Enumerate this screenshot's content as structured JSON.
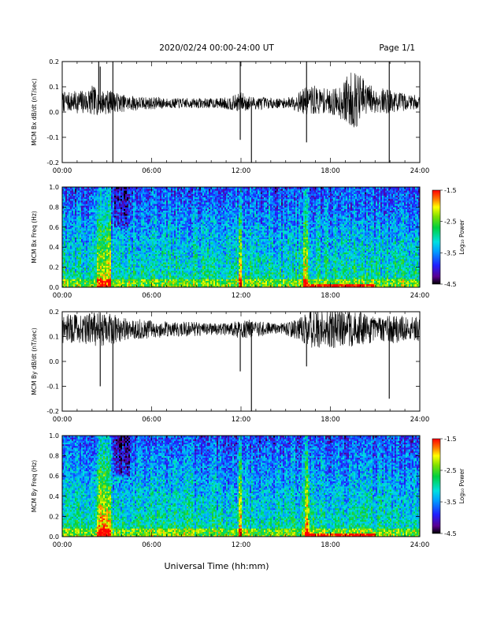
{
  "header": {
    "title": "2020/02/24  00:00-24:00 UT",
    "page": "Page 1/1"
  },
  "footer": {
    "xlabel": "Universal Time (hh:mm)"
  },
  "chart_data": [
    {
      "type": "line",
      "ylabel": "MCM Bx dB/dt (nT/sec)",
      "xlim": [
        0,
        24
      ],
      "ylim": [
        -0.2,
        0.2
      ],
      "xticks": [
        "00:00",
        "06:00",
        "12:00",
        "18:00",
        "24:00"
      ],
      "yticks": [
        "-0.2",
        "-0.1",
        "0.0",
        "0.1",
        "0.2"
      ],
      "series": [
        {
          "x": [
            0,
            0.5,
            1,
            1.5,
            2,
            2.5,
            3,
            3.5,
            4,
            4.5,
            5,
            5.5,
            6,
            6.5,
            7,
            7.5,
            8,
            8.5,
            9,
            9.5,
            10,
            10.5,
            11,
            11.5,
            12,
            12.5,
            13,
            13.5,
            14,
            14.5,
            15,
            15.5,
            16,
            16.5,
            17,
            17.5,
            18,
            18.5,
            19,
            19.5,
            20,
            20.5,
            21,
            21.5,
            22,
            22.5,
            23,
            23.5,
            24
          ],
          "y": [
            0.04,
            0.04,
            0.04,
            0.04,
            0.045,
            0.04,
            0.04,
            0.04,
            0.035,
            0.035,
            0.035,
            0.035,
            0.035,
            0.035,
            0.035,
            0.035,
            0.035,
            0.035,
            0.035,
            0.035,
            0.035,
            0.035,
            0.035,
            0.035,
            0.04,
            0.035,
            0.035,
            0.035,
            0.035,
            0.035,
            0.035,
            0.04,
            0.04,
            0.045,
            0.045,
            0.045,
            0.04,
            0.04,
            0.045,
            0.05,
            0.05,
            0.05,
            0.045,
            0.045,
            0.04,
            0.04,
            0.04,
            0.04,
            0.04
          ],
          "envelope": [
            0.04,
            0.04,
            0.045,
            0.05,
            0.06,
            0.05,
            0.05,
            0.04,
            0.035,
            0.03,
            0.03,
            0.025,
            0.025,
            0.025,
            0.02,
            0.02,
            0.02,
            0.02,
            0.02,
            0.02,
            0.02,
            0.02,
            0.025,
            0.03,
            0.04,
            0.03,
            0.025,
            0.025,
            0.02,
            0.02,
            0.02,
            0.03,
            0.045,
            0.06,
            0.06,
            0.05,
            0.05,
            0.06,
            0.09,
            0.12,
            0.1,
            0.07,
            0.05,
            0.05,
            0.05,
            0.04,
            0.035,
            0.03,
            0.03
          ]
        }
      ],
      "spikes": [
        {
          "x": 2.45,
          "y": 0.2
        },
        {
          "x": 2.55,
          "y": 0.18
        },
        {
          "x": 3.4,
          "y": 0.2
        },
        {
          "x": 3.4,
          "y": -0.2
        },
        {
          "x": 11.95,
          "y": 0.2
        },
        {
          "x": 11.95,
          "y": -0.11
        },
        {
          "x": 12.7,
          "y": -0.2
        },
        {
          "x": 16.4,
          "y": 0.2
        },
        {
          "x": 16.4,
          "y": -0.12
        },
        {
          "x": 21.95,
          "y": 0.2
        },
        {
          "x": 21.95,
          "y": -0.2
        }
      ]
    },
    {
      "type": "heatmap",
      "ylabel": "MCM Bx Freq (Hz)",
      "colorbar_label": "Log₁₀ Power",
      "colorbar_ticks": [
        "-1.5",
        "-2.5",
        "-3.5",
        "-4.5"
      ],
      "zlim": [
        -4.5,
        -1.5
      ],
      "xlim": [
        0,
        24
      ],
      "ylim": [
        0,
        1
      ],
      "xticks": [
        "00:00",
        "06:00",
        "12:00",
        "18:00",
        "24:00"
      ],
      "yticks": [
        "0.0",
        "0.2",
        "0.4",
        "0.6",
        "0.8",
        "1.0"
      ],
      "hot_bands": [
        {
          "from": 2.3,
          "to": 3.3,
          "level": -1.7
        },
        {
          "from": 11.8,
          "to": 12.1,
          "level": -2.2
        },
        {
          "from": 16.2,
          "to": 16.5,
          "level": -1.8
        }
      ]
    },
    {
      "type": "line",
      "ylabel": "MCM By dB/dt (nT/sec)",
      "xlim": [
        0,
        24
      ],
      "ylim": [
        -0.2,
        0.2
      ],
      "xticks": [
        "00:00",
        "06:00",
        "12:00",
        "18:00",
        "24:00"
      ],
      "yticks": [
        "-0.2",
        "-0.1",
        "0.0",
        "0.1",
        "0.2"
      ],
      "series": [
        {
          "x": [
            0,
            0.5,
            1,
            1.5,
            2,
            2.5,
            3,
            3.5,
            4,
            4.5,
            5,
            5.5,
            6,
            6.5,
            7,
            7.5,
            8,
            8.5,
            9,
            9.5,
            10,
            10.5,
            11,
            11.5,
            12,
            12.5,
            13,
            13.5,
            14,
            14.5,
            15,
            15.5,
            16,
            16.5,
            17,
            17.5,
            18,
            18.5,
            19,
            19.5,
            20,
            20.5,
            21,
            21.5,
            22,
            22.5,
            23,
            23.5,
            24
          ],
          "y": [
            0.13,
            0.13,
            0.13,
            0.13,
            0.13,
            0.13,
            0.13,
            0.13,
            0.13,
            0.13,
            0.13,
            0.13,
            0.13,
            0.13,
            0.13,
            0.13,
            0.13,
            0.13,
            0.13,
            0.13,
            0.13,
            0.13,
            0.13,
            0.13,
            0.13,
            0.13,
            0.13,
            0.13,
            0.13,
            0.13,
            0.13,
            0.13,
            0.13,
            0.13,
            0.13,
            0.13,
            0.13,
            0.13,
            0.13,
            0.13,
            0.13,
            0.13,
            0.13,
            0.13,
            0.13,
            0.13,
            0.13,
            0.13,
            0.13
          ],
          "envelope": [
            0.06,
            0.06,
            0.06,
            0.06,
            0.07,
            0.07,
            0.07,
            0.06,
            0.05,
            0.04,
            0.04,
            0.04,
            0.035,
            0.035,
            0.03,
            0.03,
            0.03,
            0.03,
            0.03,
            0.025,
            0.025,
            0.025,
            0.025,
            0.03,
            0.04,
            0.04,
            0.03,
            0.03,
            0.025,
            0.025,
            0.025,
            0.035,
            0.05,
            0.07,
            0.08,
            0.08,
            0.08,
            0.08,
            0.08,
            0.07,
            0.07,
            0.06,
            0.05,
            0.05,
            0.06,
            0.06,
            0.05,
            0.05,
            0.05
          ]
        }
      ],
      "spikes": [
        {
          "x": 2.55,
          "y": -0.1
        },
        {
          "x": 3.4,
          "y": -0.2
        },
        {
          "x": 11.95,
          "y": -0.04
        },
        {
          "x": 12.7,
          "y": -0.2
        },
        {
          "x": 16.4,
          "y": -0.02
        },
        {
          "x": 21.95,
          "y": -0.15
        }
      ]
    },
    {
      "type": "heatmap",
      "ylabel": "MCM By Freq (Hz)",
      "colorbar_label": "Log₁₀ Power",
      "colorbar_ticks": [
        "-1.5",
        "-2.5",
        "-3.5",
        "-4.5"
      ],
      "zlim": [
        -4.5,
        -1.5
      ],
      "xlim": [
        0,
        24
      ],
      "ylim": [
        0,
        1
      ],
      "xticks": [
        "00:00",
        "06:00",
        "12:00",
        "18:00",
        "24:00"
      ],
      "yticks": [
        "0.0",
        "0.2",
        "0.4",
        "0.6",
        "0.8",
        "1.0"
      ],
      "hot_bands": [
        {
          "from": 2.3,
          "to": 3.3,
          "level": -1.7
        },
        {
          "from": 11.8,
          "to": 12.1,
          "level": -2.2
        },
        {
          "from": 16.3,
          "to": 16.6,
          "level": -1.8
        }
      ]
    }
  ]
}
